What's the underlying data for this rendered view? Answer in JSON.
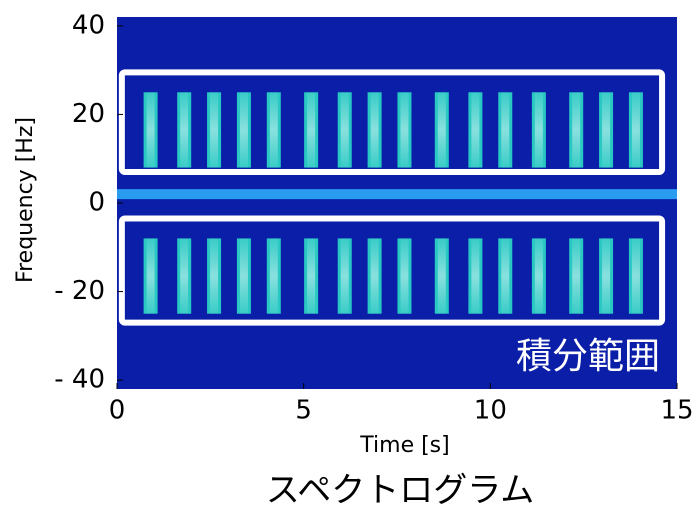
{
  "chart_data": {
    "type": "spectrogram",
    "caption": "スペクトログラム",
    "xlabel": "Time [s]",
    "ylabel": "Frequency [Hz]",
    "xlim": [
      0,
      15
    ],
    "ylim": [
      -42,
      42
    ],
    "xticks": [
      0,
      5,
      10,
      15
    ],
    "yticks": [
      40,
      20,
      0,
      {
        "value": -20,
        "label": "- 20"
      },
      {
        "value": -40,
        "label": "- 40"
      }
    ],
    "background_color": "#0a1ea8",
    "burst_color": "#2fe6c8",
    "dc_line": 2,
    "dc_color": "#2a9cf0",
    "burst_band": [
      8,
      25
    ],
    "bursts": [
      0.9,
      1.8,
      2.6,
      3.4,
      4.2,
      5.2,
      6.1,
      6.9,
      7.7,
      8.7,
      9.6,
      10.4,
      11.3,
      12.3,
      13.1,
      13.9
    ],
    "regions": [
      {
        "x": [
          0.13,
          14.6
        ],
        "y": [
          7,
          29.5
        ]
      },
      {
        "x": [
          0.13,
          14.6
        ],
        "y": [
          -27,
          -3.5
        ]
      }
    ],
    "region_label": "積分範囲"
  }
}
